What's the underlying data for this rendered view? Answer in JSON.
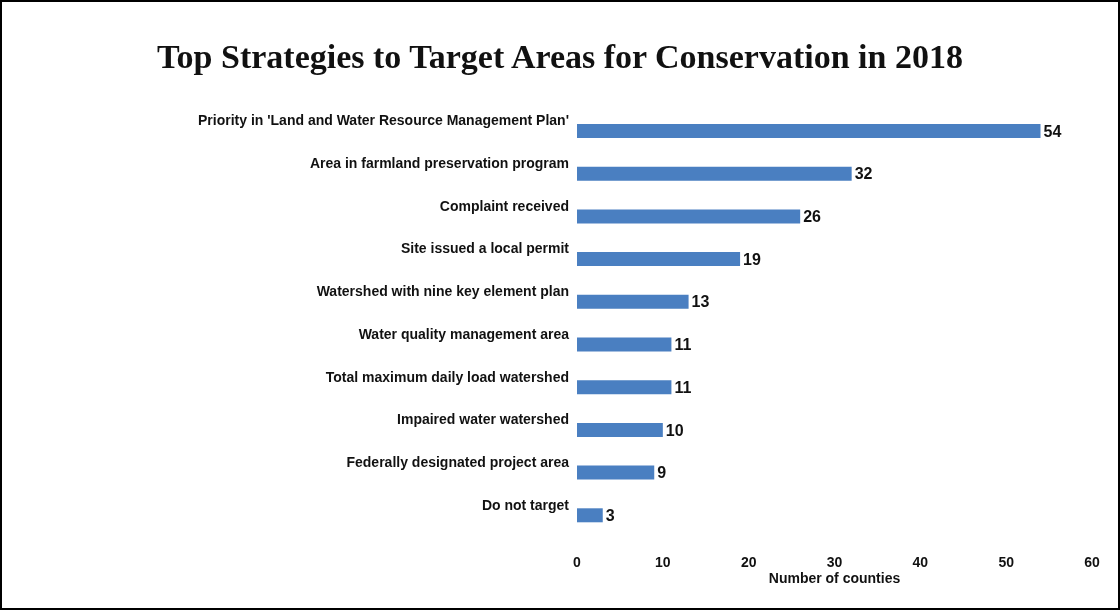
{
  "chart_data": {
    "type": "bar",
    "orientation": "horizontal",
    "title": "Top Strategies to Target Areas for Conservation in 2018",
    "xlabel": "Number of counties",
    "categories": [
      "Priority in 'Land and Water Resource Management Plan'",
      "Area in farmland preservation program",
      "Complaint received",
      "Site issued a local permit",
      "Watershed with nine key element plan",
      "Water quality management area",
      "Total maximum daily load watershed",
      "Impaired water watershed",
      "Federally designated project area",
      "Do not target"
    ],
    "values": [
      54,
      32,
      26,
      19,
      13,
      11,
      11,
      10,
      9,
      3
    ],
    "color": "#4a7fc1",
    "xlim": [
      0,
      60
    ],
    "xticks": [
      0,
      10,
      20,
      30,
      40,
      50,
      60
    ],
    "grid": false,
    "data_labels": true
  }
}
